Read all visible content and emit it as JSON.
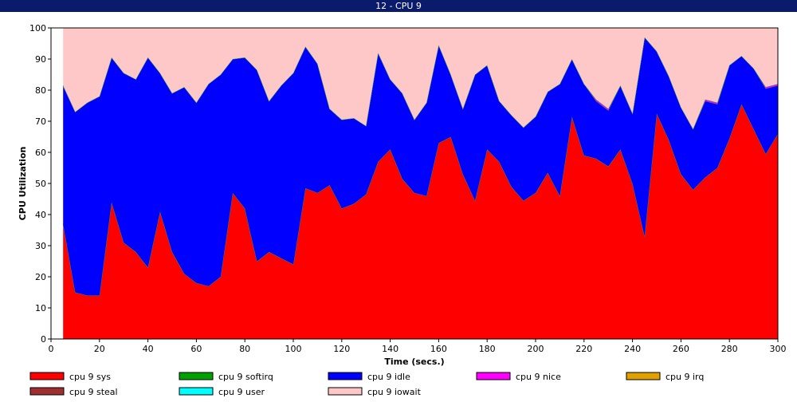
{
  "window_title": "12 - CPU 9",
  "chart_data": {
    "type": "area",
    "stacked": true,
    "xlabel": "Time (secs.)",
    "ylabel": "CPU Utilization",
    "xlim": [
      0,
      300
    ],
    "ylim": [
      0,
      100
    ],
    "x_ticks": [
      0,
      20,
      40,
      60,
      80,
      100,
      120,
      140,
      160,
      180,
      200,
      220,
      240,
      260,
      280,
      300
    ],
    "y_ticks": [
      0,
      10,
      20,
      30,
      40,
      50,
      60,
      70,
      80,
      90,
      100
    ],
    "grid": false,
    "legend_position": "bottom",
    "x": [
      5,
      10,
      15,
      20,
      25,
      30,
      35,
      40,
      45,
      50,
      55,
      60,
      65,
      70,
      75,
      80,
      85,
      90,
      95,
      100,
      105,
      110,
      115,
      120,
      125,
      130,
      135,
      140,
      145,
      150,
      155,
      160,
      165,
      170,
      175,
      180,
      185,
      190,
      195,
      200,
      205,
      210,
      215,
      220,
      225,
      230,
      235,
      240,
      245,
      250,
      255,
      260,
      265,
      270,
      275,
      280,
      285,
      290,
      295,
      300
    ],
    "series": [
      {
        "name": "cpu 9 sys",
        "color": "#ff0000",
        "values": [
          37,
          15,
          14,
          14,
          44,
          31,
          28,
          23,
          41,
          28,
          21,
          18,
          17,
          20,
          47,
          42,
          25,
          28,
          26,
          24,
          48.5,
          47,
          49.5,
          42,
          43.5,
          46.5,
          57,
          61,
          51.5,
          47,
          46,
          63,
          65,
          53,
          44.5,
          61,
          57,
          49,
          44.5,
          47,
          53.5,
          46,
          71.5,
          59,
          58,
          55.5,
          61,
          50,
          33,
          72.5,
          64,
          53,
          48,
          52,
          55,
          64.5,
          75.5,
          67.5,
          59.5,
          66
        ]
      },
      {
        "name": "cpu 9 softirq",
        "color": "#00a000",
        "values": [
          0,
          0,
          0,
          0,
          0,
          0,
          0,
          0,
          0,
          0,
          0,
          0,
          0,
          0,
          0,
          0,
          0,
          0,
          0,
          0,
          0,
          0,
          0,
          0,
          0,
          0,
          0,
          0,
          0,
          0,
          0,
          0,
          0,
          0,
          0,
          0,
          0,
          0,
          0,
          0,
          0,
          0,
          0,
          0,
          0,
          0,
          0,
          0,
          0,
          0,
          0,
          0,
          0,
          0,
          0,
          0,
          0,
          0,
          0,
          0
        ]
      },
      {
        "name": "cpu 9 idle",
        "color": "#0000ff",
        "values": [
          44.5,
          58,
          62,
          64,
          46.5,
          54.5,
          55.5,
          67.5,
          44.5,
          51,
          60,
          58,
          65,
          65,
          43,
          48.5,
          61.5,
          48.5,
          55.5,
          61.5,
          45.5,
          41.5,
          24.5,
          28.5,
          27.5,
          22,
          35,
          22.5,
          27.5,
          23.5,
          30,
          31.5,
          20,
          21,
          40.5,
          27,
          19.5,
          23,
          23.5,
          24.5,
          26,
          36,
          18.5,
          23,
          18.5,
          18,
          20.5,
          22.5,
          64,
          20,
          20.5,
          21.5,
          19.5,
          24.5,
          20.5,
          23.5,
          15.5,
          19.5,
          21,
          15.5
        ]
      },
      {
        "name": "cpu 9 nice",
        "color": "#ff00ff",
        "values": [
          0,
          0,
          0,
          0,
          0,
          0,
          0,
          0,
          0,
          0,
          0,
          0,
          0,
          0,
          0,
          0,
          0,
          0,
          0,
          0,
          0,
          0,
          0,
          0,
          0,
          0,
          0,
          0,
          0,
          0,
          0,
          0,
          0,
          0,
          0,
          0,
          0,
          0,
          0,
          0,
          0,
          0,
          0,
          0,
          0.5,
          0.5,
          0,
          0,
          0,
          0,
          0,
          0,
          0,
          0.5,
          0.5,
          0,
          0,
          0,
          0.5,
          0.5
        ]
      },
      {
        "name": "cpu 9 irq",
        "color": "#e0a000",
        "values": [
          0,
          0,
          0,
          0,
          0,
          0,
          0,
          0,
          0,
          0,
          0,
          0,
          0,
          0,
          0,
          0,
          0,
          0,
          0,
          0,
          0,
          0,
          0,
          0,
          0,
          0,
          0,
          0,
          0,
          0,
          0,
          0,
          0,
          0,
          0,
          0,
          0,
          0,
          0,
          0,
          0,
          0,
          0,
          0,
          0,
          0,
          0,
          0,
          0,
          0,
          0,
          0,
          0,
          0,
          0,
          0,
          0,
          0,
          0,
          0
        ]
      },
      {
        "name": "cpu 9 steal",
        "color": "#a03030",
        "values": [
          0,
          0,
          0,
          0,
          0,
          0,
          0,
          0,
          0,
          0,
          0,
          0,
          0,
          0,
          0,
          0,
          0,
          0,
          0,
          0,
          0,
          0,
          0,
          0,
          0,
          0,
          0,
          0,
          0,
          0,
          0,
          0,
          0,
          0,
          0,
          0,
          0,
          0,
          0,
          0,
          0,
          0,
          0,
          0,
          0,
          0,
          0,
          0,
          0,
          0,
          0,
          0,
          0,
          0,
          0,
          0,
          0,
          0,
          0,
          0
        ]
      },
      {
        "name": "cpu 9 user",
        "color": "#00ffff",
        "values": [
          0,
          0,
          0,
          0,
          0,
          0,
          0,
          0,
          0,
          0,
          0,
          0,
          0,
          0,
          0,
          0,
          0,
          0,
          0,
          0,
          0,
          0,
          0,
          0,
          0,
          0,
          0,
          0,
          0,
          0,
          0,
          0,
          0,
          0,
          0,
          0,
          0,
          0,
          0,
          0,
          0,
          0,
          0,
          0,
          0,
          0,
          0,
          0,
          0,
          0,
          0,
          0,
          0,
          0,
          0,
          0,
          0,
          0,
          0,
          0
        ]
      },
      {
        "name": "cpu 9 iowait",
        "color": "#ffc8c8",
        "values": [
          18.5,
          27,
          24,
          22,
          9.5,
          14.5,
          16.5,
          9.5,
          14.5,
          21,
          19,
          24,
          18,
          15,
          10,
          9.5,
          13.5,
          23.5,
          18.5,
          14.5,
          6,
          11.5,
          26,
          29.5,
          29,
          31.5,
          8,
          16.5,
          21,
          29.5,
          24,
          5.5,
          15,
          26,
          15,
          12,
          23.5,
          28,
          32,
          28.5,
          20.5,
          18,
          10,
          18,
          23,
          26,
          18.5,
          27.5,
          3,
          7.5,
          15.5,
          25.5,
          32.5,
          23,
          24,
          12,
          9,
          13,
          19,
          18
        ]
      }
    ]
  }
}
